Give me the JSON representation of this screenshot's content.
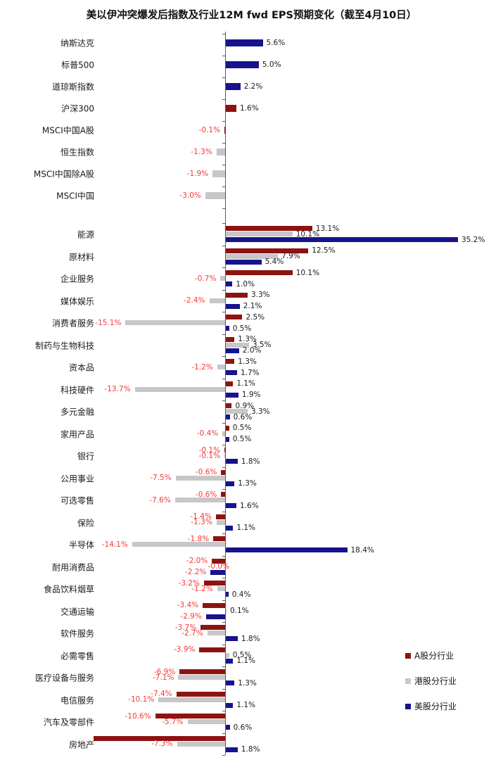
{
  "title": "美以伊冲突爆发后指数及行业12M fwd EPS预期变化（截至4月10日）",
  "chart_data": {
    "type": "bar",
    "orientation": "horizontal",
    "title": "美以伊冲突爆发后指数及行业12M fwd EPS预期变化（截至4月10日）",
    "value_unit": "%",
    "axis": {
      "zero_line": true,
      "approx_range_pct": [
        -20,
        40
      ],
      "gridlines": false
    },
    "colors": {
      "a_share": "#8d1210",
      "h_share": "#c7c7ca",
      "us_share": "#16138c",
      "negative_label": "#f63939",
      "positive_label": "#1a1a1a"
    },
    "legend": {
      "position": "bottom-right",
      "entries": [
        {
          "label": "A股分行业",
          "key": "a_share",
          "color": "#8d1210"
        },
        {
          "label": "港股分行业",
          "key": "h_share",
          "color": "#c7c7ca"
        },
        {
          "label": "美股分行业",
          "key": "us_share",
          "color": "#16138c"
        }
      ]
    },
    "indices": {
      "categories": [
        "纳斯达克",
        "标普500",
        "道琼斯指数",
        "沪深300",
        "MSCI中国A股",
        "恒生指数",
        "MSCI中国除A股",
        "MSCI中国"
      ],
      "values": [
        5.6,
        5.0,
        2.2,
        1.6,
        -0.1,
        -1.3,
        -1.9,
        -3.0
      ],
      "labels": [
        "5.6%",
        "5.0%",
        "2.2%",
        "1.6%",
        "-0.1%",
        "-1.3%",
        "-1.9%",
        "-3.0%"
      ],
      "series_key": [
        "us_share",
        "us_share",
        "us_share",
        "a_share",
        "a_share",
        "h_share",
        "h_share",
        "h_share"
      ]
    },
    "industries": {
      "categories": [
        "能源",
        "原材料",
        "企业服务",
        "媒体娱乐",
        "消费者服务",
        "制药与生物科技",
        "资本品",
        "科技硬件",
        "多元金融",
        "家用产品",
        "银行",
        "公用事业",
        "可选零售",
        "保险",
        "半导体",
        "耐用消费品",
        "食品饮料烟草",
        "交通运输",
        "软件服务",
        "必需零售",
        "医疗设备与服务",
        "电信服务",
        "汽车及零部件",
        "房地产"
      ],
      "series": [
        {
          "name": "A股分行业",
          "key": "a_share",
          "values": [
            13.1,
            12.5,
            10.1,
            3.3,
            2.5,
            1.3,
            1.3,
            1.1,
            0.9,
            0.5,
            -0.1,
            -0.6,
            -0.6,
            -1.4,
            -1.8,
            -2.0,
            -3.2,
            -3.4,
            -3.7,
            -3.9,
            -6.9,
            -7.4,
            -10.6,
            -19.9
          ],
          "labels": [
            "13.1%",
            "12.5%",
            "10.1%",
            "3.3%",
            "2.5%",
            "1.3%",
            "1.3%",
            "1.1%",
            "0.9%",
            "0.5%",
            "-0.1%",
            "-0.6%",
            "-0.6%",
            "-1.4%",
            "-1.8%",
            "-2.0%",
            "-3.2%",
            "-3.4%",
            "-3.7%",
            "-3.9%",
            "-6.9%",
            "-7.4%",
            "-10.6%",
            ""
          ]
        },
        {
          "name": "港股分行业",
          "key": "h_share",
          "values": [
            10.1,
            7.9,
            -0.7,
            -2.4,
            -15.1,
            3.5,
            -1.2,
            -13.7,
            3.3,
            -0.4,
            -0.1,
            -7.5,
            -7.6,
            -1.3,
            -14.1,
            -0.0,
            -1.2,
            0.1,
            -2.7,
            0.5,
            -7.1,
            -10.1,
            -5.7,
            -7.3
          ],
          "labels": [
            "10.1%",
            "7.9%",
            "-0.7%",
            "-2.4%",
            "-15.1%",
            "3.5%",
            "-1.2%",
            "-13.7%",
            "3.3%",
            "-0.4%",
            "-0.1%",
            "-7.5%",
            "-7.6%",
            "-1.3%",
            "-14.1%",
            "-0.0%",
            "-1.2%",
            "0.1%",
            "-2.7%",
            "0.5%",
            "-7.1%",
            "-10.1%",
            "-5.7%",
            "-7.3%"
          ]
        },
        {
          "name": "美股分行业",
          "key": "us_share",
          "values": [
            35.2,
            5.4,
            1.0,
            2.1,
            0.5,
            2.0,
            1.7,
            1.9,
            0.6,
            0.5,
            1.8,
            1.3,
            1.6,
            1.1,
            18.4,
            -2.2,
            0.4,
            -2.9,
            1.8,
            1.1,
            1.3,
            1.1,
            0.6,
            1.8
          ],
          "labels": [
            "35.2%",
            "5.4%",
            "1.0%",
            "2.1%",
            "0.5%",
            "2.0%",
            "1.7%",
            "1.9%",
            "0.6%",
            "0.5%",
            "1.8%",
            "1.3%",
            "1.6%",
            "1.1%",
            "18.4%",
            "-2.2%",
            "0.4%",
            "-2.9%",
            "1.8%",
            "1.1%",
            "1.3%",
            "1.1%",
            "0.6%",
            "1.8%"
          ]
        }
      ]
    }
  }
}
